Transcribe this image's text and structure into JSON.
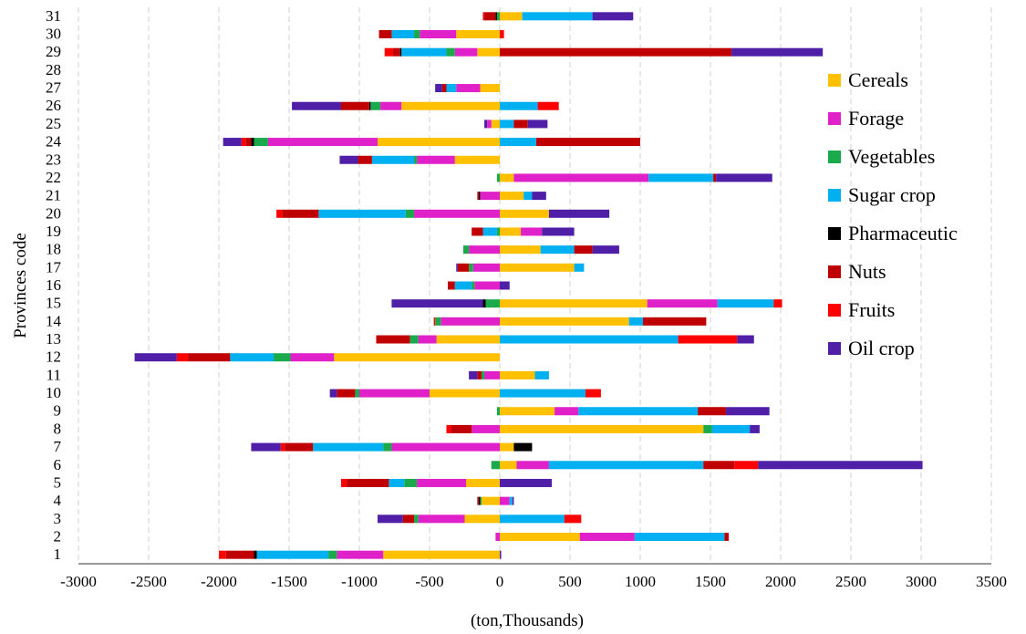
{
  "chart_data": {
    "type": "bar",
    "orientation": "horizontal",
    "stacked": "diverging",
    "xlabel": "(ton,Thousands)",
    "ylabel": "Provinces code",
    "xlim": [
      -3000,
      3500
    ],
    "xticks": [
      -3000,
      -2500,
      -2000,
      -1500,
      -1000,
      -500,
      0,
      500,
      1000,
      1500,
      2000,
      2500,
      3000,
      3500
    ],
    "categories": [
      1,
      2,
      3,
      4,
      5,
      6,
      7,
      8,
      9,
      10,
      11,
      12,
      13,
      14,
      15,
      16,
      17,
      18,
      19,
      20,
      21,
      22,
      23,
      24,
      25,
      26,
      27,
      28,
      29,
      30,
      31
    ],
    "grid": "vertical",
    "legend_position": "right",
    "positive_order": [
      "Cereals",
      "Forage",
      "Vegetables",
      "Sugar crop",
      "Pharmaceutic",
      "Nuts",
      "Fruits",
      "Oil crop"
    ],
    "negative_order": [
      "Cereals",
      "Forage",
      "Vegetables",
      "Sugar crop",
      "Pharmaceutic",
      "Nuts",
      "Fruits",
      "Oil crop"
    ],
    "series": [
      {
        "name": "Cereals",
        "color": "#FFC000",
        "positive": [
          0,
          570,
          0,
          0,
          0,
          120,
          100,
          1450,
          390,
          0,
          250,
          0,
          0,
          920,
          1050,
          0,
          530,
          290,
          150,
          350,
          170,
          100,
          0,
          0,
          0,
          0,
          0,
          0,
          0,
          0,
          160
        ],
        "negative": [
          -830,
          0,
          -250,
          -130,
          -240,
          0,
          0,
          0,
          0,
          -500,
          0,
          -1180,
          -450,
          0,
          0,
          0,
          0,
          0,
          0,
          0,
          0,
          0,
          -320,
          -870,
          -60,
          -700,
          -140,
          0,
          -160,
          -310,
          0
        ]
      },
      {
        "name": "Forage",
        "color": "#E020C8",
        "positive": [
          0,
          390,
          0,
          70,
          0,
          230,
          0,
          0,
          170,
          0,
          0,
          0,
          0,
          0,
          500,
          0,
          0,
          0,
          150,
          0,
          0,
          960,
          0,
          0,
          0,
          0,
          0,
          0,
          0,
          0,
          0
        ],
        "negative": [
          -330,
          -30,
          -330,
          0,
          -350,
          0,
          -770,
          -200,
          0,
          -500,
          -110,
          -310,
          -130,
          -420,
          0,
          -180,
          -190,
          -220,
          0,
          -610,
          -140,
          0,
          -270,
          -780,
          -30,
          -150,
          -170,
          0,
          -160,
          -260,
          0
        ]
      },
      {
        "name": "Vegetables",
        "color": "#1AA94B",
        "positive": [
          0,
          0,
          0,
          0,
          0,
          0,
          0,
          60,
          0,
          0,
          0,
          0,
          0,
          0,
          0,
          0,
          0,
          0,
          0,
          0,
          0,
          0,
          0,
          0,
          0,
          0,
          0,
          0,
          0,
          0,
          0
        ],
        "negative": [
          -60,
          0,
          -30,
          -10,
          -90,
          -60,
          -60,
          0,
          -20,
          -30,
          -20,
          -120,
          -60,
          -40,
          -100,
          -20,
          -30,
          -40,
          -20,
          -60,
          0,
          -20,
          -20,
          -100,
          0,
          -70,
          0,
          0,
          -60,
          -40,
          -20
        ]
      },
      {
        "name": "Sugar crop",
        "color": "#00B0F0",
        "positive": [
          0,
          640,
          460,
          20,
          0,
          1100,
          0,
          270,
          850,
          610,
          100,
          0,
          1270,
          100,
          400,
          0,
          70,
          240,
          0,
          0,
          60,
          460,
          0,
          260,
          100,
          270,
          0,
          0,
          0,
          0,
          500
        ],
        "negative": [
          -510,
          0,
          0,
          0,
          -110,
          0,
          -500,
          0,
          0,
          0,
          0,
          -310,
          0,
          0,
          0,
          -120,
          0,
          0,
          -100,
          -620,
          0,
          0,
          -300,
          0,
          0,
          0,
          -70,
          0,
          -320,
          -160,
          0
        ]
      },
      {
        "name": "Pharmaceutic",
        "color": "#000000",
        "positive": [
          0,
          0,
          0,
          0,
          0,
          0,
          130,
          0,
          0,
          0,
          0,
          0,
          0,
          0,
          0,
          0,
          0,
          0,
          0,
          0,
          0,
          0,
          0,
          0,
          0,
          0,
          0,
          0,
          0,
          0,
          0
        ],
        "negative": [
          -20,
          0,
          0,
          -10,
          0,
          0,
          0,
          0,
          0,
          0,
          0,
          0,
          0,
          0,
          -20,
          0,
          0,
          0,
          0,
          0,
          -10,
          0,
          0,
          -20,
          0,
          -10,
          0,
          0,
          -10,
          0,
          -10
        ]
      },
      {
        "name": "Nuts",
        "color": "#C00000",
        "positive": [
          0,
          30,
          0,
          0,
          0,
          220,
          0,
          0,
          200,
          0,
          0,
          0,
          0,
          450,
          0,
          0,
          0,
          130,
          0,
          0,
          0,
          20,
          0,
          740,
          100,
          0,
          0,
          0,
          1650,
          0,
          0
        ],
        "negative": [
          -200,
          0,
          -80,
          -10,
          -300,
          0,
          -200,
          -150,
          0,
          -130,
          -30,
          -300,
          -240,
          0,
          0,
          -50,
          -80,
          0,
          -80,
          -260,
          -10,
          0,
          -100,
          -40,
          0,
          -200,
          -30,
          0,
          -50,
          -90,
          -80
        ]
      },
      {
        "name": "Fruits",
        "color": "#FF0000",
        "positive": [
          0,
          0,
          120,
          0,
          0,
          170,
          0,
          0,
          0,
          110,
          0,
          0,
          420,
          0,
          60,
          0,
          0,
          0,
          0,
          0,
          0,
          0,
          0,
          0,
          0,
          150,
          0,
          0,
          0,
          30,
          0
        ],
        "negative": [
          -50,
          0,
          0,
          0,
          -40,
          0,
          -30,
          -30,
          0,
          0,
          0,
          -80,
          0,
          -10,
          0,
          0,
          0,
          0,
          0,
          -40,
          0,
          0,
          0,
          -30,
          0,
          0,
          0,
          0,
          -60,
          0,
          -10
        ]
      },
      {
        "name": "Oil crop",
        "color": "#4F1FA8",
        "positive": [
          10,
          0,
          0,
          10,
          370,
          1170,
          0,
          70,
          310,
          0,
          0,
          0,
          120,
          0,
          0,
          70,
          0,
          190,
          230,
          430,
          100,
          400,
          0,
          0,
          140,
          0,
          0,
          0,
          650,
          0,
          290
        ],
        "negative": [
          0,
          0,
          -180,
          0,
          0,
          0,
          -210,
          0,
          0,
          -50,
          -60,
          -300,
          0,
          0,
          -650,
          0,
          -10,
          0,
          0,
          0,
          0,
          0,
          -130,
          -130,
          -20,
          -350,
          -50,
          0,
          0,
          0,
          0
        ]
      }
    ]
  }
}
